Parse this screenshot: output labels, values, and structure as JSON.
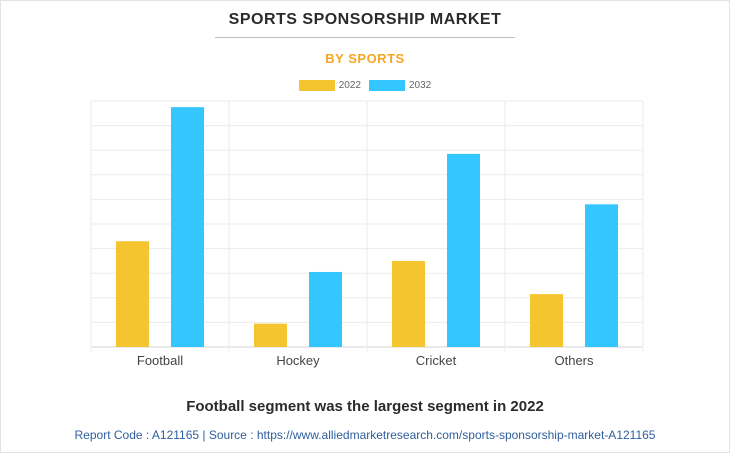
{
  "header": {
    "title": "SPORTS SPONSORSHIP MARKET",
    "subtitle": "BY SPORTS"
  },
  "colors": {
    "series_2022": "#f5c530",
    "series_2032": "#33c6ff",
    "subtitle": "#f5a623",
    "source_text": "#2e5f9e"
  },
  "chart_data": {
    "type": "bar",
    "categories": [
      "Football",
      "Hockey",
      "Cricket",
      "Others"
    ],
    "series": [
      {
        "name": "2022",
        "values": [
          43,
          9.5,
          35,
          21.5
        ]
      },
      {
        "name": "2032",
        "values": [
          97.5,
          30.5,
          78.5,
          58
        ]
      }
    ],
    "ylim": [
      0,
      100
    ],
    "grid": true,
    "legend": "top-center"
  },
  "footer": {
    "note": "Football segment was the largest segment in 2022",
    "source": "Report Code : A121165  |  Source : https://www.alliedmarketresearch.com/sports-sponsorship-market-A121165"
  }
}
